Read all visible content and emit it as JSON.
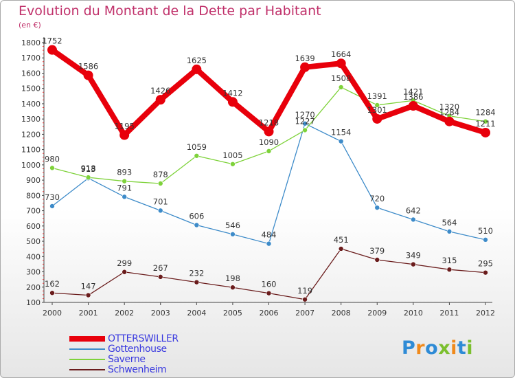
{
  "title": "Evolution du Montant de la Dette par Habitant",
  "unit": "(en €)",
  "logo": {
    "letters": [
      "P",
      "r",
      "o",
      "x",
      "i",
      "t",
      "i"
    ],
    "colors": [
      "#2e8bd6",
      "#f08a1c",
      "#2e8bd6",
      "#7bbf2e",
      "#f08a1c",
      "#2e8bd6",
      "#7bbf2e"
    ]
  },
  "chart_data": {
    "type": "line",
    "x": [
      "2000",
      "2001",
      "2002",
      "2003",
      "2004",
      "2005",
      "2006",
      "2007",
      "2008",
      "2009",
      "2010",
      "2011",
      "2012"
    ],
    "ylim": [
      100,
      1800
    ],
    "yticks": [
      100,
      200,
      300,
      400,
      500,
      600,
      700,
      800,
      900,
      1000,
      1100,
      1200,
      1300,
      1400,
      1500,
      1600,
      1700,
      1800
    ],
    "grid": false,
    "legend_position": "bottom-left",
    "series": [
      {
        "name": "OTTERSWILLER",
        "color": "#e8000b",
        "values": [
          1752,
          1586,
          1195,
          1426,
          1625,
          1412,
          1218,
          1639,
          1664,
          1301,
          1386,
          1284,
          1211
        ]
      },
      {
        "name": "Gottenhouse",
        "color": "#3d8bc9",
        "values": [
          730,
          913,
          791,
          701,
          606,
          546,
          484,
          1270,
          1154,
          720,
          642,
          564,
          510
        ]
      },
      {
        "name": "Saverne",
        "color": "#7ed23a",
        "values": [
          980,
          918,
          893,
          878,
          1059,
          1005,
          1090,
          1227,
          1508,
          1391,
          1421,
          1320,
          1284
        ]
      },
      {
        "name": "Schwenheim",
        "color": "#6a1c1c",
        "values": [
          162,
          147,
          299,
          267,
          232,
          198,
          160,
          119,
          451,
          379,
          349,
          315,
          295
        ]
      }
    ]
  }
}
